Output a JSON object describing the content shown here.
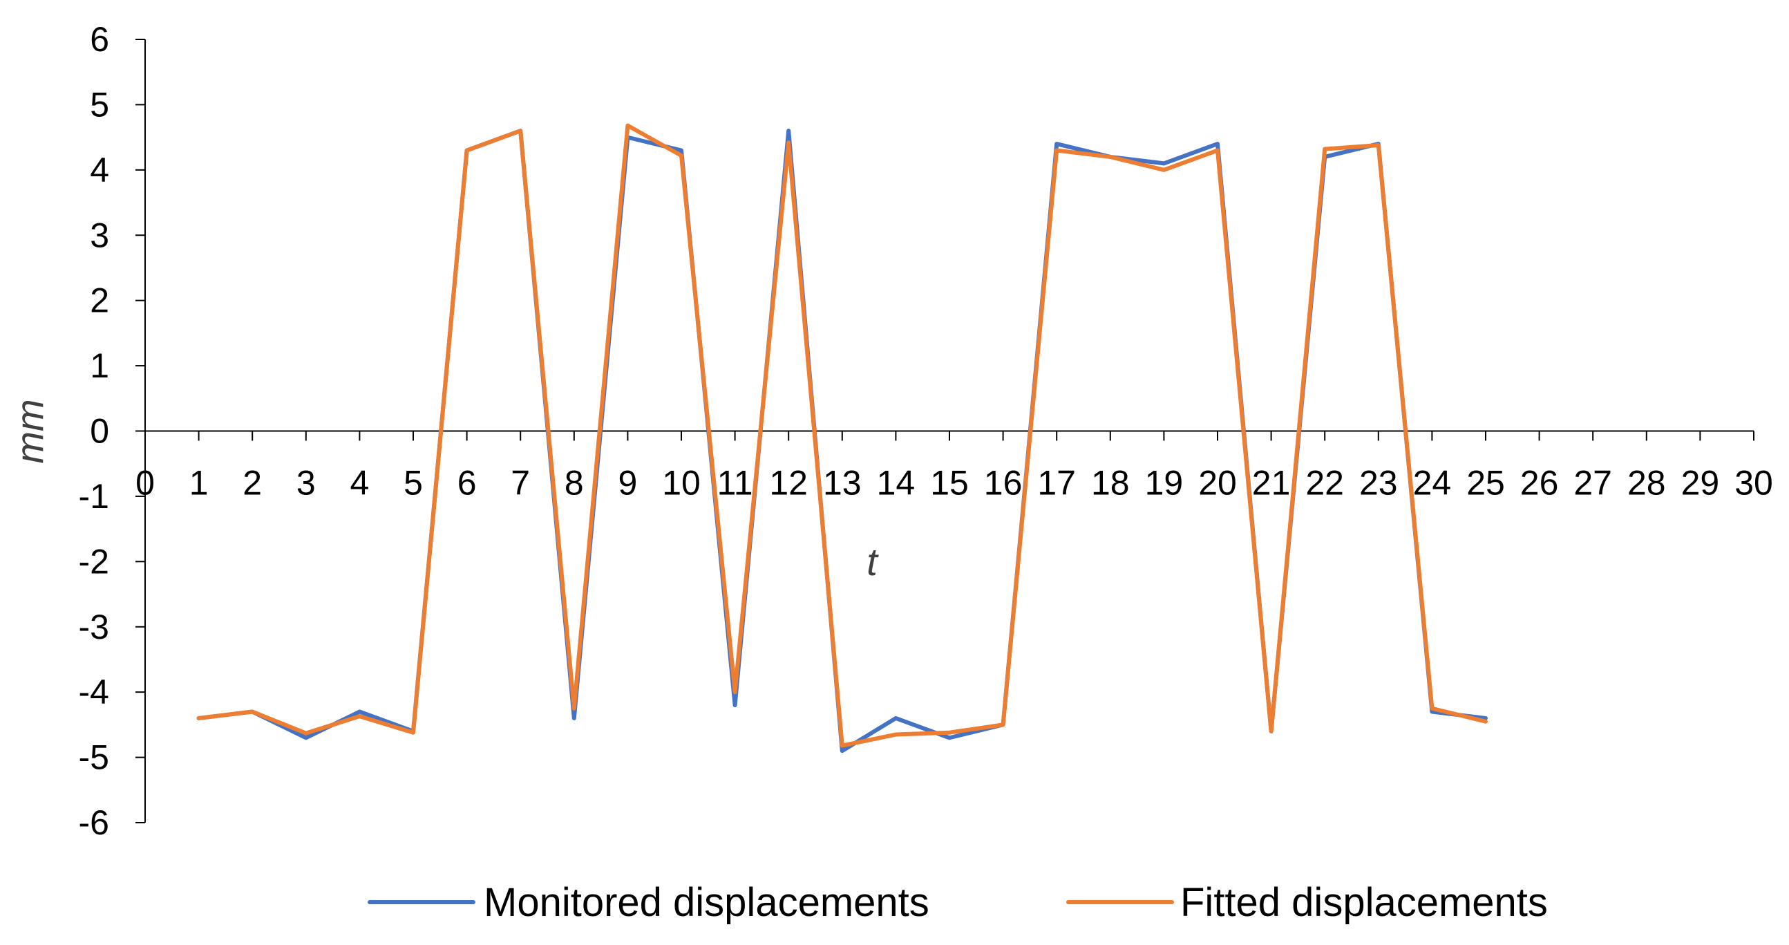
{
  "chart_data": {
    "type": "line",
    "title": "",
    "xlabel": "t",
    "ylabel": "mm",
    "xlim": [
      0,
      30
    ],
    "ylim": [
      -6,
      6
    ],
    "x_ticks": [
      "0",
      "1",
      "2",
      "3",
      "4",
      "5",
      "6",
      "7",
      "8",
      "9",
      "10",
      "11",
      "12",
      "13",
      "14",
      "15",
      "16",
      "17",
      "18",
      "19",
      "20",
      "21",
      "22",
      "23",
      "24",
      "25",
      "26",
      "27",
      "28",
      "29",
      "30"
    ],
    "y_ticks": [
      "6",
      "5",
      "4",
      "3",
      "2",
      "1",
      "0",
      "-1",
      "-2",
      "-3",
      "-4",
      "-5",
      "-6"
    ],
    "grid": false,
    "legend_position": "bottom",
    "x": [
      1,
      2,
      3,
      4,
      5,
      6,
      7,
      8,
      9,
      10,
      11,
      12,
      13,
      14,
      15,
      16,
      17,
      18,
      19,
      20,
      21,
      22,
      23,
      24,
      25
    ],
    "series": [
      {
        "name": "Monitored displacements",
        "color": "#4472C4",
        "values": [
          -4.4,
          -4.3,
          -4.7,
          -4.3,
          -4.6,
          4.3,
          4.6,
          -4.4,
          4.5,
          4.3,
          -4.2,
          4.6,
          -4.9,
          -4.4,
          -4.7,
          -4.5,
          4.4,
          4.2,
          4.1,
          4.4,
          -4.6,
          4.2,
          4.4,
          -4.3,
          -4.4
        ]
      },
      {
        "name": "Fitted displacements",
        "color": "#ED7D31",
        "values": [
          -4.4,
          -4.3,
          -4.63,
          -4.37,
          -4.62,
          4.3,
          4.6,
          -4.25,
          4.68,
          4.22,
          -4.0,
          4.42,
          -4.82,
          -4.65,
          -4.62,
          -4.5,
          4.3,
          4.2,
          4.0,
          4.3,
          -4.6,
          4.32,
          4.38,
          -4.25,
          -4.45
        ]
      }
    ]
  }
}
